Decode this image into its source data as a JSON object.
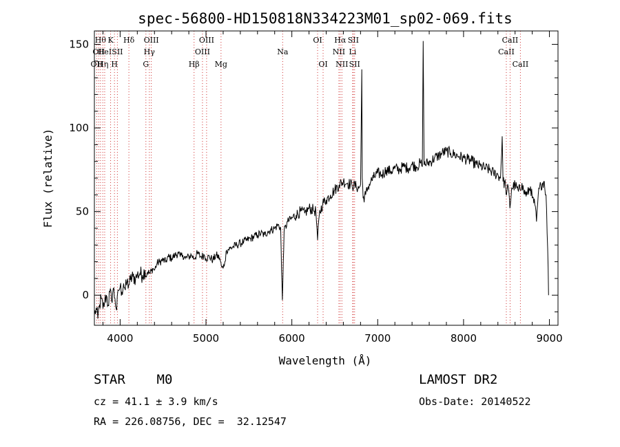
{
  "chart_data": {
    "type": "line",
    "title": "spec-56800-HD150818N334223M01_sp02-069.fits",
    "xlabel": "Wavelength (Å)",
    "ylabel": "Flux (relative)",
    "xlim": [
      3700,
      9100
    ],
    "ylim": [
      -18,
      158
    ],
    "xticks": [
      4000,
      5000,
      6000,
      7000,
      8000,
      9000
    ],
    "yticks": [
      0,
      50,
      100,
      150
    ],
    "grid": false,
    "series": [
      {
        "values": [
          [
            3700,
            -12
          ],
          [
            3720,
            -8
          ],
          [
            3740,
            -14
          ],
          [
            3760,
            -6
          ],
          [
            3780,
            -2
          ],
          [
            3800,
            -8
          ],
          [
            3820,
            -4
          ],
          [
            3840,
            0
          ],
          [
            3860,
            -6
          ],
          [
            3880,
            2
          ],
          [
            3900,
            -3
          ],
          [
            3920,
            4
          ],
          [
            3940,
            -2
          ],
          [
            3960,
            -9
          ],
          [
            3980,
            3
          ],
          [
            4000,
            5
          ],
          [
            4020,
            2
          ],
          [
            4040,
            7
          ],
          [
            4060,
            3
          ],
          [
            4080,
            8
          ],
          [
            4100,
            6
          ],
          [
            4120,
            9
          ],
          [
            4150,
            11
          ],
          [
            4180,
            10
          ],
          [
            4200,
            12
          ],
          [
            4230,
            13
          ],
          [
            4260,
            12
          ],
          [
            4290,
            15
          ],
          [
            4300,
            11
          ],
          [
            4320,
            14
          ],
          [
            4350,
            13
          ],
          [
            4380,
            16
          ],
          [
            4400,
            15
          ],
          [
            4430,
            19
          ],
          [
            4460,
            20
          ],
          [
            4500,
            21
          ],
          [
            4530,
            20
          ],
          [
            4560,
            23
          ],
          [
            4600,
            22
          ],
          [
            4640,
            24
          ],
          [
            4680,
            25
          ],
          [
            4700,
            23
          ],
          [
            4730,
            24
          ],
          [
            4760,
            22
          ],
          [
            4800,
            23
          ],
          [
            4830,
            24
          ],
          [
            4860,
            22
          ],
          [
            4900,
            25
          ],
          [
            4940,
            23
          ],
          [
            4980,
            24
          ],
          [
            5000,
            22
          ],
          [
            5040,
            23
          ],
          [
            5080,
            21
          ],
          [
            5120,
            24
          ],
          [
            5160,
            22
          ],
          [
            5180,
            17
          ],
          [
            5200,
            16
          ],
          [
            5220,
            20
          ],
          [
            5240,
            27
          ],
          [
            5280,
            28
          ],
          [
            5320,
            29
          ],
          [
            5360,
            30
          ],
          [
            5400,
            31
          ],
          [
            5440,
            32
          ],
          [
            5480,
            33
          ],
          [
            5520,
            34
          ],
          [
            5560,
            35
          ],
          [
            5600,
            36
          ],
          [
            5640,
            37
          ],
          [
            5680,
            36
          ],
          [
            5720,
            38
          ],
          [
            5760,
            39
          ],
          [
            5800,
            40
          ],
          [
            5840,
            42
          ],
          [
            5870,
            40
          ],
          [
            5880,
            15
          ],
          [
            5890,
            -3
          ],
          [
            5900,
            20
          ],
          [
            5910,
            38
          ],
          [
            5950,
            44
          ],
          [
            6000,
            46
          ],
          [
            6050,
            48
          ],
          [
            6100,
            50
          ],
          [
            6150,
            49
          ],
          [
            6200,
            52
          ],
          [
            6250,
            51
          ],
          [
            6280,
            50
          ],
          [
            6300,
            33
          ],
          [
            6320,
            48
          ],
          [
            6360,
            55
          ],
          [
            6400,
            57
          ],
          [
            6450,
            60
          ],
          [
            6500,
            63
          ],
          [
            6550,
            66
          ],
          [
            6600,
            68
          ],
          [
            6650,
            67
          ],
          [
            6700,
            66
          ],
          [
            6750,
            65
          ],
          [
            6780,
            64
          ],
          [
            6800,
            66
          ],
          [
            6810,
            112
          ],
          [
            6815,
            135
          ],
          [
            6820,
            70
          ],
          [
            6830,
            58
          ],
          [
            6860,
            60
          ],
          [
            6890,
            65
          ],
          [
            6920,
            68
          ],
          [
            6950,
            70
          ],
          [
            7000,
            73
          ],
          [
            7050,
            72
          ],
          [
            7100,
            75
          ],
          [
            7150,
            74
          ],
          [
            7200,
            76
          ],
          [
            7250,
            75
          ],
          [
            7300,
            77
          ],
          [
            7350,
            76
          ],
          [
            7400,
            78
          ],
          [
            7450,
            77
          ],
          [
            7500,
            79
          ],
          [
            7520,
            77
          ],
          [
            7530,
            152
          ],
          [
            7540,
            78
          ],
          [
            7580,
            79
          ],
          [
            7620,
            80
          ],
          [
            7660,
            82
          ],
          [
            7700,
            83
          ],
          [
            7750,
            85
          ],
          [
            7800,
            86
          ],
          [
            7850,
            85
          ],
          [
            7900,
            84
          ],
          [
            7950,
            83
          ],
          [
            8000,
            82
          ],
          [
            8050,
            81
          ],
          [
            8100,
            80
          ],
          [
            8150,
            78
          ],
          [
            8200,
            77
          ],
          [
            8250,
            76
          ],
          [
            8300,
            75
          ],
          [
            8350,
            73
          ],
          [
            8400,
            72
          ],
          [
            8430,
            70
          ],
          [
            8450,
            95
          ],
          [
            8460,
            68
          ],
          [
            8490,
            66
          ],
          [
            8500,
            60
          ],
          [
            8520,
            65
          ],
          [
            8540,
            52
          ],
          [
            8560,
            64
          ],
          [
            8600,
            66
          ],
          [
            8640,
            62
          ],
          [
            8680,
            67
          ],
          [
            8700,
            62
          ],
          [
            8740,
            60
          ],
          [
            8780,
            65
          ],
          [
            8800,
            58
          ],
          [
            8830,
            54
          ],
          [
            8850,
            44
          ],
          [
            8870,
            60
          ],
          [
            8900,
            66
          ],
          [
            8940,
            68
          ],
          [
            8960,
            60
          ],
          [
            8980,
            28
          ],
          [
            8990,
            0
          ]
        ]
      }
    ],
    "lines": [
      {
        "w": 3727,
        "label": "OII",
        "row": 2
      },
      {
        "w": 3750,
        "label": "OII",
        "row": 1
      },
      {
        "w": 3771,
        "label": "Hθ",
        "row": 0
      },
      {
        "w": 3798,
        "label": "Hη",
        "row": 2
      },
      {
        "w": 3820,
        "label": "HeI",
        "row": 1
      },
      {
        "w": 3889,
        "label": "K",
        "row": 0
      },
      {
        "w": 3934,
        "label": "H",
        "row": 2
      },
      {
        "w": 3968,
        "label": "SII",
        "row": 1
      },
      {
        "w": 4102,
        "label": "Hδ",
        "row": 0
      },
      {
        "w": 4300,
        "label": "G",
        "row": 2
      },
      {
        "w": 4340,
        "label": "Hγ",
        "row": 1
      },
      {
        "w": 4363,
        "label": "OIII",
        "row": 0
      },
      {
        "w": 4861,
        "label": "Hβ",
        "row": 2
      },
      {
        "w": 4959,
        "label": "OIII",
        "row": 1
      },
      {
        "w": 5007,
        "label": "OIII",
        "row": 0
      },
      {
        "w": 5175,
        "label": "Mg",
        "row": 2
      },
      {
        "w": 5893,
        "label": "Na",
        "row": 1
      },
      {
        "w": 6300,
        "label": "OI",
        "row": 0
      },
      {
        "w": 6364,
        "label": "OI",
        "row": 2
      },
      {
        "w": 6548,
        "label": "NII",
        "row": 1
      },
      {
        "w": 6563,
        "label": "Hα",
        "row": 0
      },
      {
        "w": 6583,
        "label": "NII",
        "row": 2
      },
      {
        "w": 6708,
        "label": "Li",
        "row": 1
      },
      {
        "w": 6716,
        "label": "SII",
        "row": 0
      },
      {
        "w": 6731,
        "label": "SII",
        "row": 2
      },
      {
        "w": 8498,
        "label": "CaII",
        "row": 1
      },
      {
        "w": 8542,
        "label": "CaII",
        "row": 0
      },
      {
        "w": 8662,
        "label": "CaII",
        "row": 2
      }
    ]
  },
  "info": {
    "object_class": "STAR    M0",
    "survey": "LAMOST DR2",
    "redshift": "cz = 41.1 ± 3.9 km/s",
    "obs_date": "Obs-Date: 20140522",
    "coords": "RA = 226.08756, DEC =  32.12547"
  }
}
